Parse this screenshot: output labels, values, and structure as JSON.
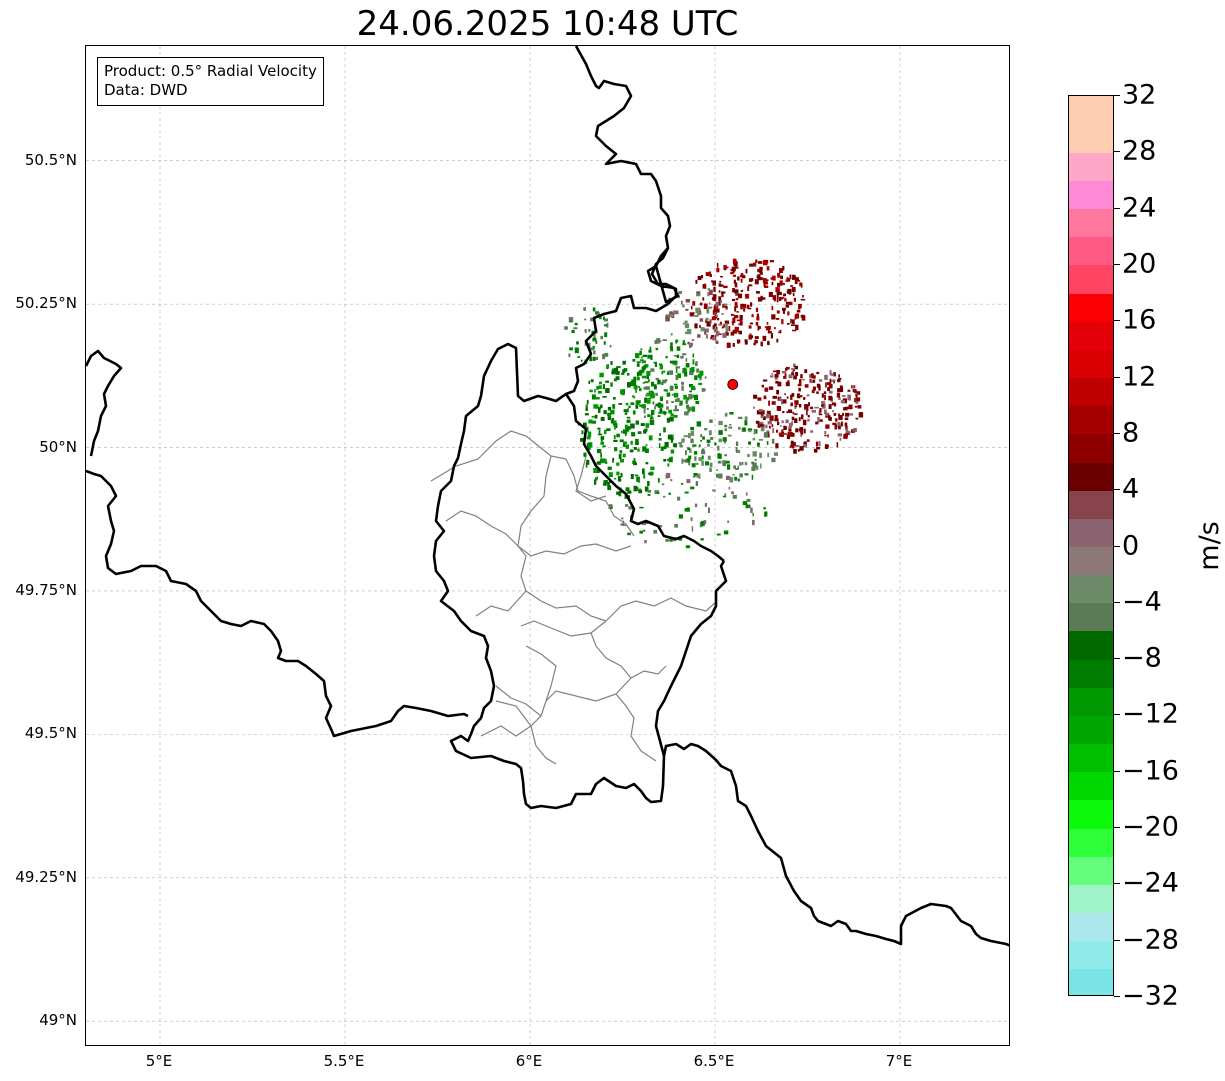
{
  "title": "24.06.2025 10:48 UTC",
  "info_box": {
    "product": "Product: 0.5° Radial Velocity",
    "data": "Data: DWD"
  },
  "map": {
    "lon_range": [
      4.8,
      7.3
    ],
    "lat_range": [
      48.955,
      50.7
    ],
    "lat_ticks": [
      {
        "value": 50.5,
        "label": "50.5°N"
      },
      {
        "value": 50.25,
        "label": "50.25°N"
      },
      {
        "value": 50.0,
        "label": "50°N"
      },
      {
        "value": 49.75,
        "label": "49.75°N"
      },
      {
        "value": 49.5,
        "label": "49.5°N"
      },
      {
        "value": 49.25,
        "label": "49.25°N"
      },
      {
        "value": 49.0,
        "label": "49°N"
      }
    ],
    "lon_ticks": [
      {
        "value": 5.0,
        "label": "5°E"
      },
      {
        "value": 5.5,
        "label": "5.5°E"
      },
      {
        "value": 6.0,
        "label": "6°E"
      },
      {
        "value": 6.5,
        "label": "6.5°E"
      },
      {
        "value": 7.0,
        "label": "7°E"
      }
    ],
    "radar_site": {
      "lon": 6.548,
      "lat": 50.11
    }
  },
  "colorbar": {
    "unit": "m/s",
    "min": -32,
    "max": 32,
    "ticks": [
      "-32",
      "−28",
      "−24",
      "−20",
      "−16",
      "−12",
      "−8",
      "−4",
      "0",
      "4",
      "8",
      "12",
      "16",
      "20",
      "24",
      "28",
      "32"
    ],
    "colors": [
      "#7ae3e6",
      "#8feae9",
      "#ace8eb",
      "#9ef3c8",
      "#64fc7b",
      "#2ffe3a",
      "#0bfa0c",
      "#00d900",
      "#00c100",
      "#00a600",
      "#009700",
      "#007d00",
      "#006a00",
      "#5a7c55",
      "#6c8a67",
      "#8d7878",
      "#8c6370",
      "#88444c",
      "#6b0000",
      "#8e0000",
      "#a60000",
      "#c00000",
      "#d80000",
      "#e40008",
      "#fb0000",
      "#ff4561",
      "#ff5a84",
      "#ff769f",
      "#ff8ad5",
      "#ffa7c7",
      "#ffcdb1",
      "#ffcdb1"
    ]
  }
}
